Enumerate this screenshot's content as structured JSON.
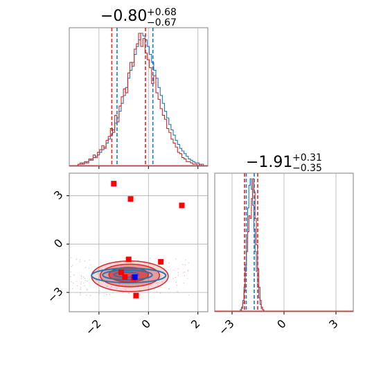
{
  "figure": {
    "type": "corner-plot",
    "colors": {
      "blue": "#1f77b4",
      "red": "#d62728",
      "marker_red": "#ff0000",
      "marker_blue": "#0000ff",
      "grid": "#b0b0b0"
    }
  },
  "chart_data": [
    {
      "type": "histogram",
      "panel": "top-left",
      "title": {
        "main": "−0.80",
        "sup": "+0.68",
        "sub": "−0.67"
      },
      "xlim": [
        -3.2,
        2.4
      ],
      "grid": true,
      "xticks": [
        -2,
        0,
        2
      ],
      "series": [
        {
          "color": "#1f77b4",
          "values": [
            0,
            0,
            0,
            0,
            1,
            1,
            2,
            2,
            3,
            4,
            5,
            6,
            7,
            8,
            10,
            12,
            14,
            17,
            20,
            23,
            27,
            32,
            36,
            41,
            47,
            53,
            59,
            66,
            72,
            78,
            84,
            90,
            95,
            100,
            98,
            95,
            90,
            84,
            78,
            72,
            66,
            59,
            53,
            47,
            41,
            36,
            31,
            27,
            23,
            19,
            16,
            13,
            11,
            9,
            7,
            5,
            4,
            3,
            2,
            2,
            1,
            1,
            0,
            0
          ]
        },
        {
          "color": "#d62728",
          "values": [
            0,
            0,
            0,
            0,
            1,
            2,
            1,
            3,
            2,
            5,
            4,
            8,
            6,
            10,
            12,
            15,
            13,
            19,
            22,
            28,
            25,
            38,
            33,
            45,
            52,
            58,
            55,
            70,
            78,
            75,
            88,
            92,
            100,
            90,
            96,
            85,
            80,
            74,
            62,
            68,
            55,
            50,
            43,
            38,
            35,
            28,
            25,
            20,
            17,
            14,
            10,
            9,
            6,
            5,
            3,
            3,
            2,
            1,
            1,
            0,
            1,
            0,
            0,
            0
          ]
        }
      ],
      "quantiles": {
        "red": [
          -1.48,
          -0.12
        ],
        "blue": [
          -1.27,
          0.18
        ]
      }
    },
    {
      "type": "histogram",
      "panel": "bottom-right",
      "title": {
        "main": "−1.91",
        "sup": "+0.31",
        "sub": "−0.35"
      },
      "xlim": [
        -4.0,
        4.0
      ],
      "grid": true,
      "xticks": [
        -3,
        0,
        3
      ],
      "series": [
        {
          "color": "#1f77b4",
          "bins": {
            "min": -2.6,
            "max": -1.1
          },
          "values": [
            0,
            1,
            3,
            8,
            18,
            35,
            55,
            78,
            95,
            100,
            92,
            80,
            62,
            45,
            30,
            18,
            10,
            5,
            2,
            1,
            0
          ]
        },
        {
          "color": "#d62728",
          "bins": {
            "min": -2.6,
            "max": -1.1
          },
          "values": [
            0,
            0,
            2,
            6,
            15,
            30,
            45,
            60,
            72,
            70,
            85,
            100,
            90,
            70,
            50,
            32,
            18,
            8,
            3,
            1,
            0
          ]
        }
      ],
      "quantiles": {
        "red": [
          -2.28,
          -1.52
        ],
        "blue": [
          -2.18,
          -1.72
        ]
      }
    },
    {
      "type": "scatter-contour",
      "panel": "bottom-left",
      "xlim": [
        -3.2,
        2.4
      ],
      "ylim": [
        -4.2,
        4.4
      ],
      "grid": true,
      "xticks": [
        -2,
        0,
        2
      ],
      "yticks": [
        -3,
        0,
        3
      ],
      "red_markers": [
        {
          "x": -1.4,
          "y": 3.75
        },
        {
          "x": -0.72,
          "y": 2.8
        },
        {
          "x": 1.35,
          "y": 2.4
        },
        {
          "x": -0.8,
          "y": -0.95
        },
        {
          "x": 0.5,
          "y": -1.1
        },
        {
          "x": -1.1,
          "y": -1.75
        },
        {
          "x": -0.95,
          "y": -2.05
        },
        {
          "x": -0.6,
          "y": -2.1
        },
        {
          "x": -0.5,
          "y": -3.2
        }
      ],
      "blue_markers": [
        {
          "x": -0.55,
          "y": -2.05
        }
      ],
      "contours": {
        "red": [
          {
            "cx": -0.75,
            "cy": -2.0,
            "rx": 1.55,
            "ry": 0.95
          },
          {
            "cx": -0.75,
            "cy": -1.95,
            "rx": 1.2,
            "ry": 0.7
          },
          {
            "cx": -0.8,
            "cy": -1.9,
            "rx": 0.8,
            "ry": 0.45
          }
        ],
        "blue": [
          {
            "cx": -0.8,
            "cy": -1.95,
            "rx": 1.5,
            "ry": 0.45
          },
          {
            "cx": -0.85,
            "cy": -1.92,
            "rx": 1.0,
            "ry": 0.3
          },
          {
            "cx": -0.9,
            "cy": -1.9,
            "rx": 0.5,
            "ry": 0.15
          }
        ]
      }
    }
  ]
}
